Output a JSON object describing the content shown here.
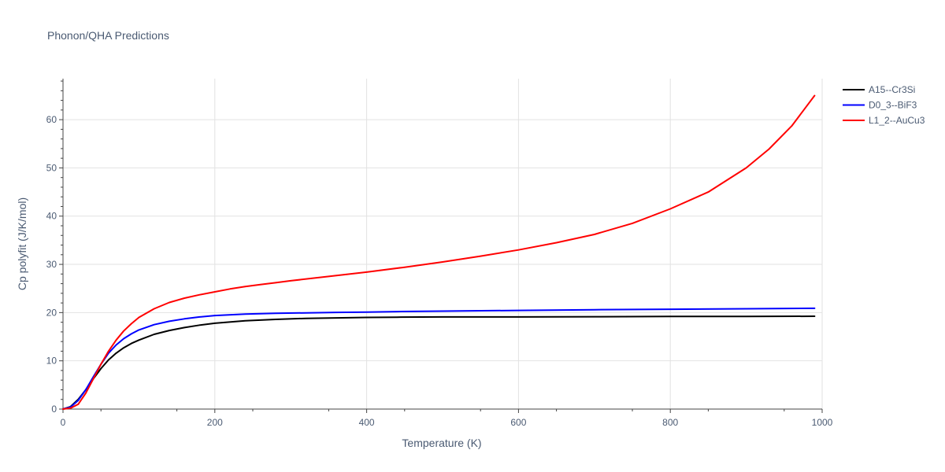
{
  "chart_data": {
    "type": "line",
    "title": "Phonon/QHA Predictions",
    "xlabel": "Temperature (K)",
    "ylabel": "Cp polyfit (J/K/mol)",
    "xlim": [
      0,
      1000
    ],
    "ylim": [
      0,
      68.5
    ],
    "x_ticks": [
      0,
      200,
      400,
      600,
      800,
      1000
    ],
    "y_ticks": [
      0,
      10,
      20,
      30,
      40,
      50,
      60
    ],
    "grid": true,
    "legend_position": "top-right",
    "series": [
      {
        "name": "A15--Cr3Si",
        "color": "#000000",
        "x": [
          0,
          10,
          20,
          30,
          40,
          50,
          60,
          70,
          80,
          90,
          100,
          120,
          140,
          160,
          180,
          200,
          240,
          280,
          320,
          360,
          400,
          440,
          500,
          600,
          700,
          800,
          900,
          990
        ],
        "y": [
          0,
          0.5,
          2.0,
          4.0,
          6.3,
          8.4,
          10.2,
          11.6,
          12.7,
          13.6,
          14.3,
          15.5,
          16.3,
          16.9,
          17.4,
          17.8,
          18.3,
          18.6,
          18.8,
          18.9,
          19.0,
          19.05,
          19.1,
          19.1,
          19.15,
          19.2,
          19.2,
          19.25
        ]
      },
      {
        "name": "D0_3--BiF3",
        "color": "#0000ff",
        "x": [
          0,
          10,
          20,
          30,
          40,
          50,
          60,
          70,
          80,
          90,
          100,
          120,
          140,
          160,
          180,
          200,
          240,
          280,
          320,
          360,
          400,
          440,
          500,
          600,
          700,
          800,
          900,
          990
        ],
        "y": [
          0,
          0.4,
          1.8,
          4.0,
          6.7,
          9.3,
          11.6,
          13.3,
          14.6,
          15.6,
          16.4,
          17.5,
          18.2,
          18.7,
          19.1,
          19.4,
          19.7,
          19.85,
          19.95,
          20.05,
          20.1,
          20.2,
          20.3,
          20.45,
          20.6,
          20.7,
          20.8,
          20.9
        ]
      },
      {
        "name": "L1_2--AuCu3",
        "color": "#ff0000",
        "x": [
          0,
          10,
          20,
          30,
          40,
          50,
          60,
          70,
          80,
          90,
          100,
          120,
          140,
          160,
          180,
          200,
          220,
          240,
          260,
          280,
          300,
          350,
          400,
          450,
          500,
          550,
          600,
          650,
          700,
          750,
          800,
          850,
          900,
          930,
          960,
          990
        ],
        "y": [
          0,
          0.2,
          1.0,
          3.3,
          6.3,
          9.3,
          12.0,
          14.3,
          16.2,
          17.7,
          19.0,
          20.8,
          22.1,
          23.0,
          23.7,
          24.3,
          24.9,
          25.4,
          25.8,
          26.2,
          26.6,
          27.5,
          28.4,
          29.4,
          30.5,
          31.7,
          33.0,
          34.5,
          36.2,
          38.5,
          41.5,
          45.0,
          50.0,
          53.9,
          58.7,
          65.0
        ]
      }
    ]
  }
}
